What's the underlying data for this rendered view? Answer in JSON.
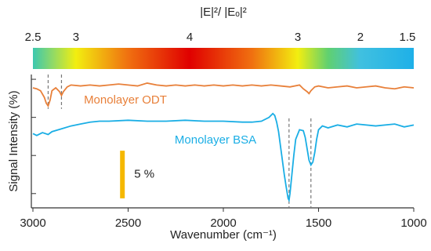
{
  "chart_data": {
    "type": "line",
    "xlabel": "Wavenumber (cm⁻¹)",
    "ylabel": "Signal Intensity (%)",
    "xlim": [
      3000,
      1000
    ],
    "xticks": [
      3000,
      2500,
      2000,
      1500,
      1000
    ],
    "ylim": [
      0,
      14
    ],
    "yticks": [
      1.5,
      5.5,
      9.5,
      13.5
    ],
    "series": [
      {
        "name": "Monolayer ODT",
        "color": "#e8803a",
        "x": [
          3000,
          2980,
          2960,
          2940,
          2930,
          2920,
          2910,
          2900,
          2880,
          2860,
          2850,
          2840,
          2820,
          2800,
          2750,
          2700,
          2650,
          2600,
          2550,
          2500,
          2450,
          2400,
          2350,
          2300,
          2250,
          2200,
          2150,
          2100,
          2050,
          2000,
          1950,
          1900,
          1850,
          1800,
          1750,
          1700,
          1650,
          1600,
          1580,
          1560,
          1550,
          1540,
          1520,
          1500,
          1450,
          1400,
          1350,
          1300,
          1250,
          1200,
          1150,
          1100,
          1050,
          1000
        ],
        "values": [
          12.6,
          12.5,
          12.3,
          11.6,
          11.0,
          10.7,
          11.3,
          12.3,
          12.6,
          12.2,
          11.8,
          12.2,
          12.7,
          12.9,
          12.8,
          12.9,
          12.8,
          12.9,
          13.0,
          12.9,
          12.8,
          13.1,
          12.9,
          12.8,
          12.9,
          12.8,
          12.9,
          12.8,
          12.9,
          12.8,
          12.9,
          12.8,
          12.9,
          12.8,
          12.9,
          12.8,
          12.7,
          12.9,
          12.5,
          12.2,
          12.0,
          12.3,
          12.7,
          12.8,
          12.6,
          12.7,
          12.8,
          12.6,
          12.7,
          12.8,
          12.6,
          12.5,
          12.7,
          12.6
        ]
      },
      {
        "name": "Monolayer BSA",
        "color": "#1aaee5",
        "x": [
          3000,
          2980,
          2950,
          2920,
          2900,
          2850,
          2800,
          2750,
          2700,
          2650,
          2600,
          2500,
          2400,
          2300,
          2200,
          2100,
          2000,
          1900,
          1850,
          1800,
          1760,
          1740,
          1730,
          1720,
          1710,
          1700,
          1690,
          1680,
          1670,
          1660,
          1655,
          1650,
          1640,
          1630,
          1620,
          1600,
          1580,
          1570,
          1560,
          1550,
          1540,
          1530,
          1520,
          1510,
          1500,
          1480,
          1450,
          1400,
          1350,
          1300,
          1200,
          1100,
          1050,
          1000
        ],
        "values": [
          7.8,
          7.6,
          7.9,
          7.7,
          8.0,
          8.3,
          8.6,
          8.8,
          9.0,
          9.1,
          9.1,
          9.2,
          9.1,
          9.1,
          9.2,
          9.1,
          9.1,
          9.0,
          9.0,
          9.1,
          9.5,
          9.9,
          9.7,
          9.0,
          8.0,
          6.5,
          5.0,
          3.5,
          2.2,
          1.0,
          0.8,
          1.5,
          3.5,
          5.5,
          7.2,
          8.2,
          8.1,
          7.4,
          6.2,
          5.0,
          4.5,
          4.8,
          5.8,
          7.2,
          8.2,
          8.6,
          8.4,
          8.7,
          8.5,
          8.8,
          8.6,
          8.8,
          8.5,
          8.7
        ]
      }
    ],
    "dashed_lines": [
      {
        "series": 0,
        "x": [
          2920,
          2850
        ]
      },
      {
        "series": 1,
        "x": [
          1655,
          1540
        ]
      }
    ],
    "scale_bar": {
      "x": 2530,
      "from": 1,
      "to": 6,
      "label": "5 %",
      "color": "#f5b800"
    },
    "colorbar": {
      "title": "|E|²/ |Eₒ|²",
      "ticks": [
        2.5,
        3,
        4,
        3,
        2,
        1.5
      ],
      "tick_x": [
        3000,
        2774,
        2177,
        1609,
        1280,
        1033
      ],
      "stops": [
        {
          "x": 3000,
          "color": "#3cc8b0"
        },
        {
          "x": 2774,
          "color": "#f2ee10"
        },
        {
          "x": 2500,
          "color": "#f07010"
        },
        {
          "x": 2177,
          "color": "#e00000"
        },
        {
          "x": 1850,
          "color": "#f07010"
        },
        {
          "x": 1609,
          "color": "#f2ee10"
        },
        {
          "x": 1450,
          "color": "#60d070"
        },
        {
          "x": 1280,
          "color": "#40c0e0"
        },
        {
          "x": 1000,
          "color": "#1eb0e8"
        }
      ]
    }
  }
}
